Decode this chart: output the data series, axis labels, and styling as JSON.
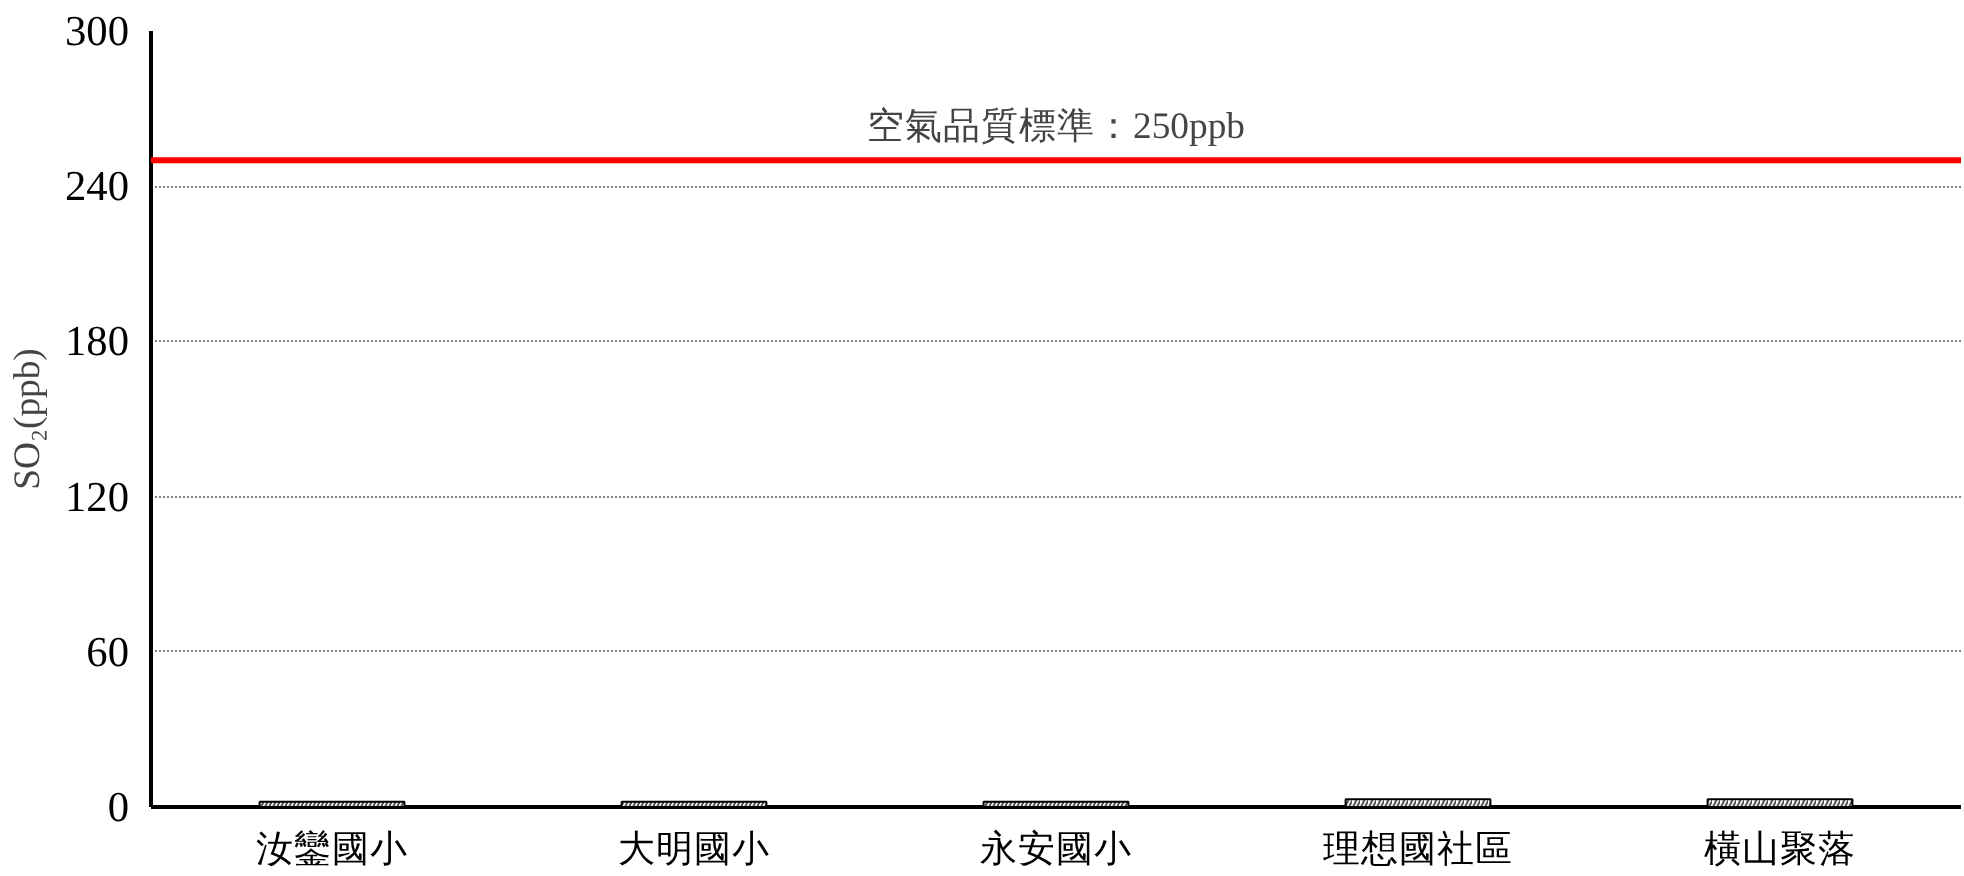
{
  "chart_data": {
    "type": "bar",
    "ylabel": "SO₂(ppb)",
    "categories": [
      "汝鑾國小",
      "大明國小",
      "永安國小",
      "理想國社區",
      "橫山聚落"
    ],
    "values": [
      2,
      2,
      2,
      3,
      3
    ],
    "color": "#ffffff",
    "ylim": [
      0,
      300
    ],
    "yticks": [
      0,
      60,
      120,
      180,
      240,
      300
    ],
    "grid": "y",
    "ref_lines": [
      {
        "axis": "y",
        "value": 250,
        "label": "空氣品質標準：250ppb",
        "color": "#ff0000"
      }
    ]
  }
}
